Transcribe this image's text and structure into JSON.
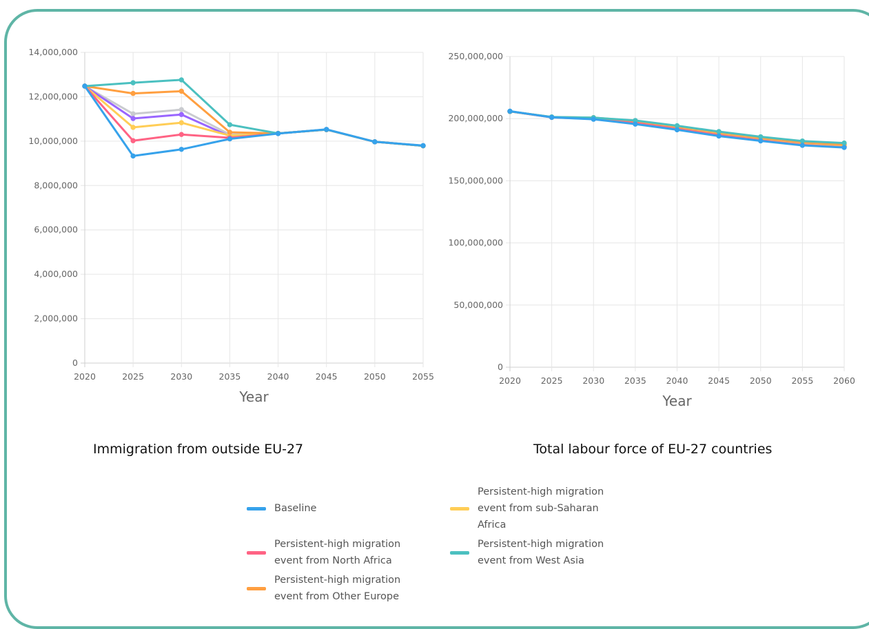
{
  "chart_data": [
    {
      "type": "line",
      "title": "Immigration from outside EU-27",
      "xlabel": "Year",
      "ylabel": "",
      "x": [
        2020,
        2025,
        2030,
        2035,
        2040,
        2045,
        2050,
        2055
      ],
      "ylim": [
        0,
        14000000
      ],
      "yticks": [
        "0",
        "2,000,000",
        "4,000,000",
        "6,000,000",
        "8,000,000",
        "10,000,000",
        "12,000,000",
        "14,000,000"
      ],
      "grid": true,
      "series": [
        {
          "key": "grey",
          "color": "#c9cbcf",
          "values": [
            12480000,
            11230000,
            11420000,
            10300000,
            10350000,
            10520000,
            9970000,
            9790000
          ]
        },
        {
          "key": "purple",
          "color": "#9966ff",
          "values": [
            12480000,
            11020000,
            11200000,
            10220000,
            10350000,
            10520000,
            9970000,
            9790000
          ]
        },
        {
          "key": "yellow",
          "name": "Persistent-high migration event from sub-Saharan Africa",
          "color": "#ffcd56",
          "values": [
            12480000,
            10620000,
            10830000,
            10250000,
            10350000,
            10520000,
            9970000,
            9790000
          ]
        },
        {
          "key": "pink",
          "name": "Persistent-high migration event from North Africa",
          "color": "#ff6384",
          "values": [
            12480000,
            10020000,
            10300000,
            10150000,
            10350000,
            10520000,
            9970000,
            9790000
          ]
        },
        {
          "key": "orange",
          "name": "Persistent-high migration event from Other Europe",
          "color": "#ff9f40",
          "values": [
            12480000,
            12150000,
            12250000,
            10400000,
            10350000,
            10520000,
            9970000,
            9790000
          ]
        },
        {
          "key": "teal",
          "name": "Persistent-high migration event from West Asia",
          "color": "#4bc0c0",
          "values": [
            12480000,
            12630000,
            12760000,
            10740000,
            10350000,
            10520000,
            9970000,
            9790000
          ]
        },
        {
          "key": "blue",
          "name": "Baseline",
          "color": "#36a2eb",
          "values": [
            12480000,
            9330000,
            9630000,
            10100000,
            10340000,
            10530000,
            9970000,
            9800000
          ]
        }
      ]
    },
    {
      "type": "line",
      "title": "Total labour force of EU-27 countries",
      "xlabel": "Year",
      "ylabel": "",
      "x": [
        2020,
        2025,
        2030,
        2035,
        2040,
        2045,
        2050,
        2055,
        2060
      ],
      "ylim": [
        0,
        250000000
      ],
      "yticks": [
        "0",
        "50,000,000",
        "100,000,000",
        "150,000,000",
        "200,000,000",
        "250,000,000"
      ],
      "grid": true,
      "series": [
        {
          "key": "grey",
          "color": "#c9cbcf",
          "values": [
            205800000,
            201200000,
            200100000,
            197100000,
            192700000,
            187800000,
            183500000,
            179800000,
            177900000
          ]
        },
        {
          "key": "purple",
          "color": "#9966ff",
          "values": [
            205800000,
            201200000,
            200100000,
            197000000,
            192500000,
            187600000,
            183300000,
            179600000,
            177700000
          ]
        },
        {
          "key": "yellow",
          "color": "#ffcd56",
          "values": [
            205800000,
            201100000,
            200000000,
            196900000,
            192300000,
            187400000,
            183100000,
            179300000,
            177500000
          ]
        },
        {
          "key": "pink",
          "color": "#ff6384",
          "values": [
            205800000,
            201000000,
            199800000,
            196500000,
            191800000,
            186800000,
            182600000,
            178800000,
            177000000
          ]
        },
        {
          "key": "orange",
          "color": "#ff9f40",
          "values": [
            205800000,
            201300000,
            200800000,
            198200000,
            193800000,
            189000000,
            184700000,
            181100000,
            179200000
          ]
        },
        {
          "key": "teal",
          "color": "#4bc0c0",
          "values": [
            205800000,
            201400000,
            200800000,
            198500000,
            194300000,
            189600000,
            185400000,
            182000000,
            180400000
          ]
        },
        {
          "key": "blue",
          "color": "#36a2eb",
          "values": [
            206000000,
            201000000,
            199500000,
            195600000,
            191000000,
            186000000,
            182100000,
            178500000,
            176800000
          ]
        }
      ]
    }
  ],
  "captions": {
    "left": "Immigration from outside EU-27",
    "right": "Total labour force of EU-27 countries"
  },
  "legend": [
    {
      "label": "Baseline",
      "color": "#36a2eb"
    },
    {
      "label": "Persistent-high migration event from sub-Saharan Africa",
      "color": "#ffcd56"
    },
    {
      "label": "Persistent-high migration event from North Africa",
      "color": "#ff6384"
    },
    {
      "label": "Persistent-high migration event from West Asia",
      "color": "#4bc0c0"
    },
    {
      "label": "Persistent-high migration event from Other Europe",
      "color": "#ff9f40"
    }
  ]
}
